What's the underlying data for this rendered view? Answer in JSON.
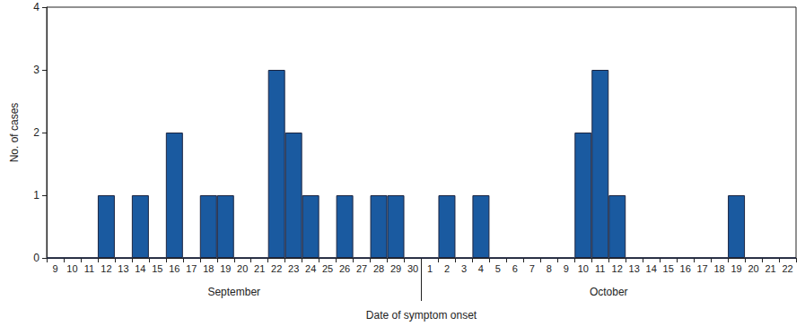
{
  "chart_data": {
    "type": "bar",
    "categories": [
      "9",
      "10",
      "11",
      "12",
      "13",
      "14",
      "15",
      "16",
      "17",
      "18",
      "19",
      "20",
      "21",
      "22",
      "23",
      "24",
      "25",
      "26",
      "27",
      "28",
      "29",
      "30",
      "1",
      "2",
      "3",
      "4",
      "5",
      "6",
      "7",
      "8",
      "9",
      "10",
      "11",
      "12",
      "13",
      "14",
      "15",
      "16",
      "17",
      "18",
      "19",
      "20",
      "21",
      "22"
    ],
    "values": [
      0,
      0,
      0,
      1,
      0,
      1,
      0,
      2,
      0,
      1,
      1,
      0,
      0,
      3,
      2,
      1,
      0,
      1,
      0,
      1,
      1,
      0,
      0,
      1,
      0,
      1,
      0,
      0,
      0,
      0,
      0,
      2,
      3,
      1,
      0,
      0,
      0,
      0,
      0,
      0,
      1,
      0,
      0,
      0
    ],
    "color": "#1a5aa0",
    "ylim": [
      0,
      4
    ],
    "yticks": [
      0,
      1,
      2,
      3,
      4
    ],
    "grid": false,
    "x_label": "Date of symptom onset",
    "y_label": "No. of cases",
    "annotations": [
      "September",
      "October"
    ]
  }
}
